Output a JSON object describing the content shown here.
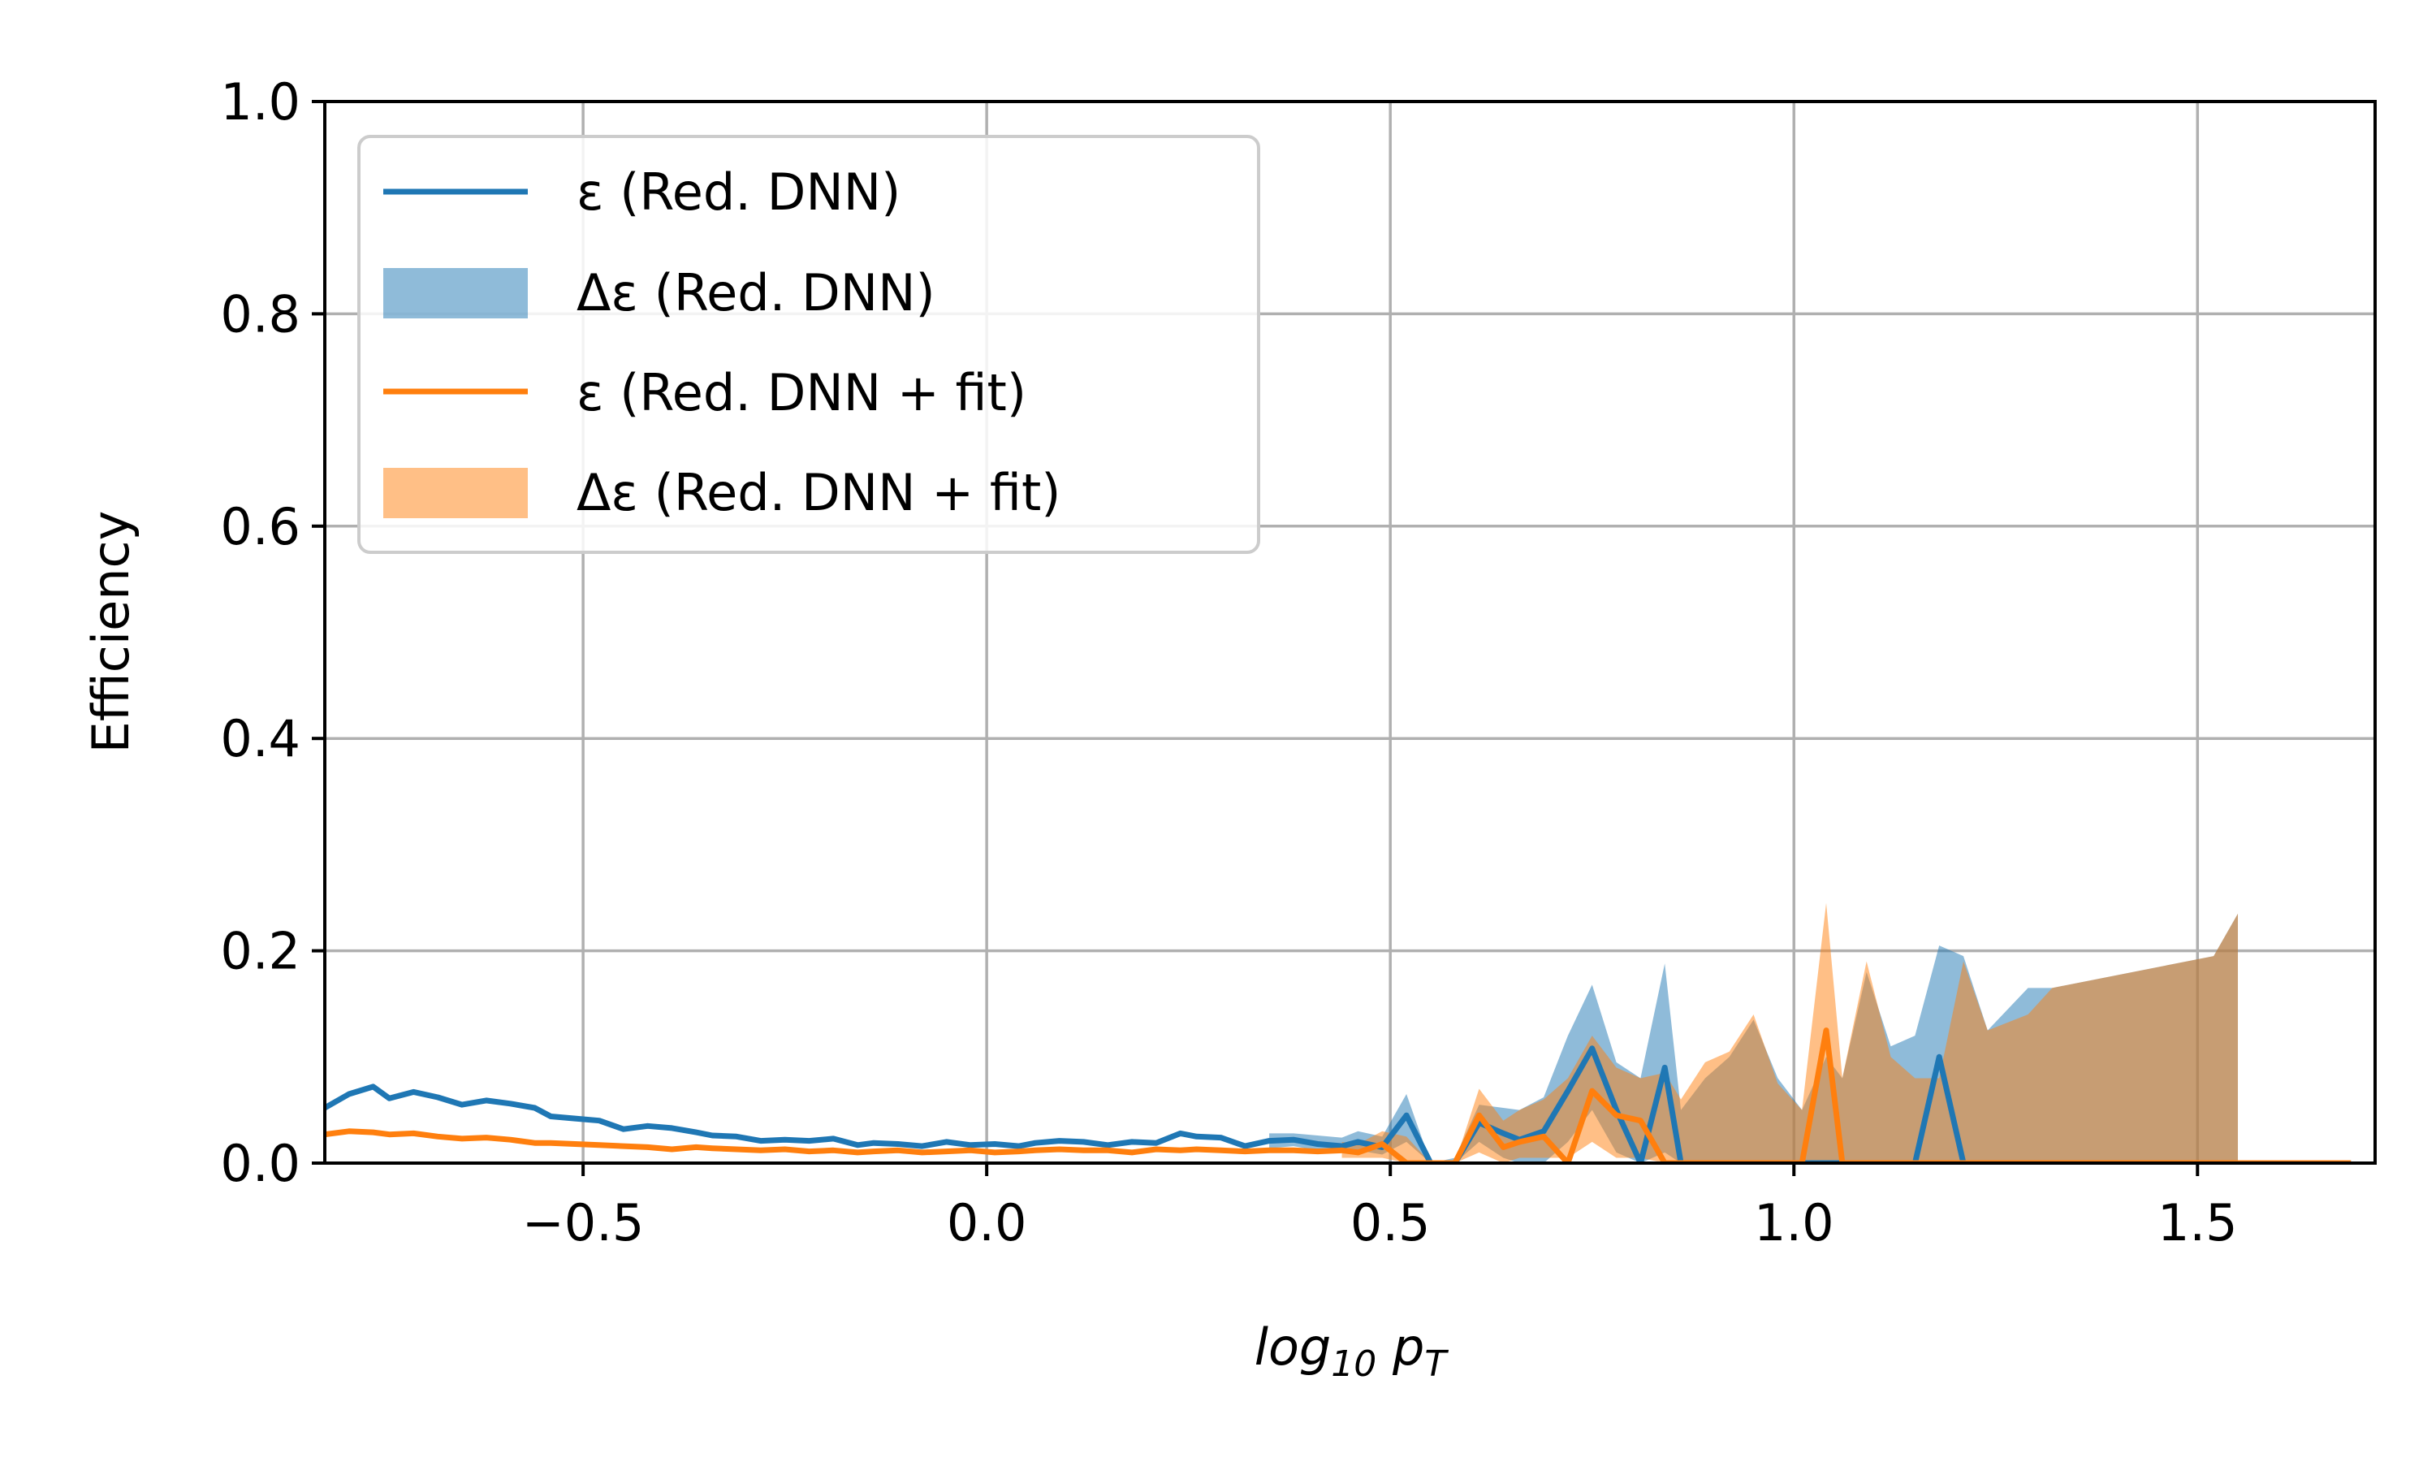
{
  "chart_data": {
    "type": "line",
    "xlabel": "log10 pT",
    "ylabel": "Efficiency",
    "xlim": [
      -0.82,
      1.72
    ],
    "ylim": [
      0,
      1.0
    ],
    "xticks": [
      -0.5,
      0.0,
      0.5,
      1.0,
      1.5
    ],
    "xtick_labels": [
      "−0.5",
      "0.0",
      "0.5",
      "1.0",
      "1.5"
    ],
    "yticks": [
      0.0,
      0.2,
      0.4,
      0.6,
      0.8,
      1.0
    ],
    "ytick_labels": [
      "0.0",
      "0.2",
      "0.4",
      "0.6",
      "0.8",
      "1.0"
    ],
    "grid": true,
    "legend_position": "top-left",
    "colors": {
      "blue": "#1f77b4",
      "orange": "#ff7f0e"
    },
    "legend": [
      {
        "label": "ε (Red. DNN)",
        "kind": "line",
        "color": "#1f77b4"
      },
      {
        "label": "Δε (Red. DNN)",
        "kind": "band",
        "color": "#1f77b4"
      },
      {
        "label": "ε (Red. DNN + fit)",
        "kind": "line",
        "color": "#ff7f0e"
      },
      {
        "label": "Δε (Red. DNN + fit)",
        "kind": "band",
        "color": "#ff7f0e"
      }
    ],
    "series": [
      {
        "name": "ε (Red. DNN)",
        "color": "#1f77b4",
        "x": [
          -0.82,
          -0.79,
          -0.76,
          -0.74,
          -0.71,
          -0.68,
          -0.65,
          -0.62,
          -0.59,
          -0.56,
          -0.54,
          -0.51,
          -0.48,
          -0.45,
          -0.42,
          -0.39,
          -0.36,
          -0.34,
          -0.31,
          -0.28,
          -0.25,
          -0.22,
          -0.19,
          -0.16,
          -0.14,
          -0.11,
          -0.08,
          -0.05,
          -0.02,
          0.01,
          0.04,
          0.06,
          0.09,
          0.12,
          0.15,
          0.18,
          0.21,
          0.24,
          0.26,
          0.29,
          0.32,
          0.35,
          0.38,
          0.41,
          0.44,
          0.46,
          0.49,
          0.52,
          0.55,
          0.58,
          0.61,
          0.64,
          0.66,
          0.69,
          0.72,
          0.75,
          0.78,
          0.81,
          0.84,
          0.86,
          0.89,
          0.92,
          0.95,
          0.98,
          1.01,
          1.04,
          1.06,
          1.09,
          1.12,
          1.15,
          1.18,
          1.21,
          1.24,
          1.26,
          1.29,
          1.32,
          1.35,
          1.38,
          1.41,
          1.44,
          1.46,
          1.49,
          1.52,
          1.55,
          1.58,
          1.61,
          1.64,
          1.66,
          1.69
        ],
        "y": [
          0.052,
          0.065,
          0.072,
          0.061,
          0.067,
          0.062,
          0.055,
          0.059,
          0.056,
          0.052,
          0.044,
          0.042,
          0.04,
          0.032,
          0.035,
          0.033,
          0.029,
          0.026,
          0.025,
          0.021,
          0.022,
          0.021,
          0.023,
          0.017,
          0.019,
          0.018,
          0.016,
          0.02,
          0.017,
          0.018,
          0.016,
          0.019,
          0.021,
          0.02,
          0.017,
          0.02,
          0.019,
          0.028,
          0.025,
          0.024,
          0.016,
          0.021,
          0.022,
          0.018,
          0.016,
          0.02,
          0.015,
          0.045,
          0.0,
          0.0,
          0.038,
          0.028,
          0.022,
          0.03,
          0.068,
          0.108,
          0.05,
          0.0,
          0.09,
          0.0,
          0.0,
          0.0,
          0.0,
          0.0,
          0.0,
          0.0,
          0.0,
          0.0,
          0.0,
          0.0,
          0.1,
          0.0,
          0.0,
          0.0,
          0.0,
          0.0,
          0.0,
          0.0,
          0.0,
          0.0,
          0.0,
          0.0,
          0.0,
          0.0,
          0.0,
          0.0,
          0.0,
          0.0,
          0.0
        ]
      },
      {
        "name": "ε (Red. DNN + fit)",
        "color": "#ff7f0e",
        "x": [
          -0.82,
          -0.79,
          -0.76,
          -0.74,
          -0.71,
          -0.68,
          -0.65,
          -0.62,
          -0.59,
          -0.56,
          -0.54,
          -0.51,
          -0.48,
          -0.45,
          -0.42,
          -0.39,
          -0.36,
          -0.34,
          -0.31,
          -0.28,
          -0.25,
          -0.22,
          -0.19,
          -0.16,
          -0.14,
          -0.11,
          -0.08,
          -0.05,
          -0.02,
          0.01,
          0.04,
          0.06,
          0.09,
          0.12,
          0.15,
          0.18,
          0.21,
          0.24,
          0.26,
          0.29,
          0.32,
          0.35,
          0.38,
          0.41,
          0.44,
          0.46,
          0.49,
          0.52,
          0.55,
          0.58,
          0.61,
          0.64,
          0.66,
          0.69,
          0.72,
          0.75,
          0.78,
          0.81,
          0.84,
          0.86,
          0.89,
          0.92,
          0.95,
          0.98,
          1.01,
          1.04,
          1.06,
          1.09,
          1.12,
          1.15,
          1.18,
          1.21,
          1.24,
          1.26,
          1.29,
          1.32,
          1.35,
          1.38,
          1.41,
          1.44,
          1.46,
          1.49,
          1.52,
          1.55,
          1.58,
          1.61,
          1.64,
          1.66,
          1.69
        ],
        "y": [
          0.027,
          0.03,
          0.029,
          0.027,
          0.028,
          0.025,
          0.023,
          0.024,
          0.022,
          0.019,
          0.019,
          0.018,
          0.017,
          0.016,
          0.015,
          0.013,
          0.015,
          0.014,
          0.013,
          0.012,
          0.013,
          0.011,
          0.012,
          0.01,
          0.011,
          0.012,
          0.01,
          0.011,
          0.012,
          0.01,
          0.011,
          0.012,
          0.013,
          0.012,
          0.012,
          0.01,
          0.013,
          0.012,
          0.013,
          0.012,
          0.011,
          0.012,
          0.012,
          0.011,
          0.012,
          0.01,
          0.018,
          0.0,
          0.0,
          0.0,
          0.045,
          0.015,
          0.02,
          0.025,
          0.0,
          0.068,
          0.045,
          0.04,
          0.0,
          0.0,
          0.0,
          0.0,
          0.0,
          0.0,
          0.0,
          0.125,
          0.0,
          0.0,
          0.0,
          0.0,
          0.0,
          0.0,
          0.0,
          0.0,
          0.0,
          0.0,
          0.0,
          0.0,
          0.0,
          0.0,
          0.0,
          0.0,
          0.0,
          0.0,
          0.0,
          0.0,
          0.0,
          0.0,
          0.0
        ]
      }
    ],
    "bands": [
      {
        "name": "Δε (Red. DNN)",
        "color": "#1f77b4",
        "x": [
          0.35,
          0.38,
          0.41,
          0.44,
          0.46,
          0.49,
          0.52,
          0.55,
          0.58,
          0.61,
          0.64,
          0.66,
          0.69,
          0.72,
          0.75,
          0.78,
          0.81,
          0.84,
          0.86,
          0.89,
          0.92,
          0.95,
          0.98,
          1.01,
          1.04,
          1.06,
          1.09,
          1.12,
          1.15,
          1.18,
          1.21,
          1.24,
          1.29,
          1.32,
          1.52,
          1.55
        ],
        "upper": [
          0.028,
          0.028,
          0.026,
          0.024,
          0.03,
          0.025,
          0.065,
          0.0,
          0.005,
          0.055,
          0.052,
          0.05,
          0.062,
          0.12,
          0.168,
          0.095,
          0.08,
          0.188,
          0.05,
          0.08,
          0.1,
          0.135,
          0.08,
          0.05,
          0.1,
          0.08,
          0.18,
          0.11,
          0.12,
          0.205,
          0.195,
          0.125,
          0.165,
          0.165,
          0.195,
          0.235
        ],
        "lower": [
          0.014,
          0.016,
          0.012,
          0.01,
          0.012,
          0.008,
          0.02,
          0.0,
          0.0,
          0.02,
          0.005,
          0.0,
          0.0,
          0.02,
          0.05,
          0.01,
          0.0,
          0.01,
          0.0,
          0.0,
          0.0,
          0.0,
          0.0,
          0.0,
          0.0,
          0.0,
          0.0,
          0.0,
          0.0,
          0.0,
          0.0,
          0.0,
          0.0,
          0.0,
          0.0,
          0.0
        ]
      },
      {
        "name": "Δε (Red. DNN + fit)",
        "color": "#ff7f0e",
        "x": [
          0.44,
          0.46,
          0.49,
          0.52,
          0.55,
          0.58,
          0.61,
          0.64,
          0.66,
          0.69,
          0.72,
          0.75,
          0.78,
          0.81,
          0.84,
          0.86,
          0.89,
          0.92,
          0.95,
          0.98,
          1.01,
          1.04,
          1.06,
          1.09,
          1.12,
          1.15,
          1.18,
          1.21,
          1.24,
          1.29,
          1.32,
          1.52,
          1.55
        ],
        "upper": [
          0.02,
          0.018,
          0.03,
          0.025,
          0.0,
          0.0,
          0.07,
          0.04,
          0.05,
          0.06,
          0.08,
          0.12,
          0.09,
          0.08,
          0.085,
          0.06,
          0.095,
          0.105,
          0.14,
          0.075,
          0.05,
          0.245,
          0.08,
          0.19,
          0.1,
          0.08,
          0.08,
          0.19,
          0.125,
          0.14,
          0.165,
          0.195,
          0.235
        ],
        "lower": [
          0.005,
          0.005,
          0.005,
          0.0,
          0.0,
          0.0,
          0.01,
          0.0,
          0.005,
          0.005,
          0.005,
          0.02,
          0.005,
          0.005,
          0.0,
          0.0,
          0.0,
          0.0,
          0.0,
          0.0,
          0.0,
          0.0,
          0.0,
          0.0,
          0.0,
          0.0,
          0.0,
          0.0,
          0.0,
          0.0,
          0.0,
          0.0,
          0.0
        ]
      }
    ]
  }
}
